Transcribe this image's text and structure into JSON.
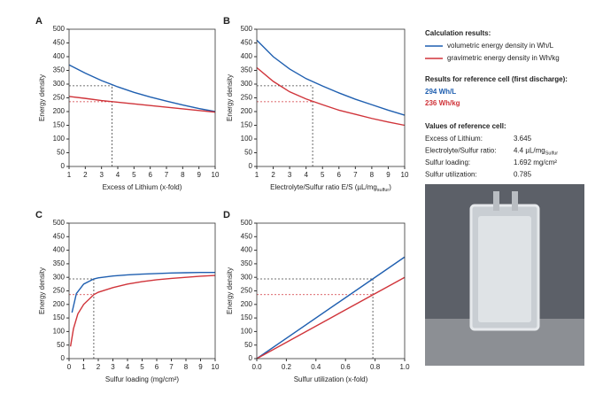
{
  "chart_data": [
    {
      "type": "line",
      "label": "A",
      "y_label": "Energy density",
      "x_label": {
        "text": "Excess of Lithium (x-fold)"
      },
      "xlim": [
        1,
        10
      ],
      "xticks": [
        1,
        2,
        3,
        4,
        5,
        6,
        7,
        8,
        9,
        10
      ],
      "ylim": [
        0,
        500
      ],
      "yticks": [
        0,
        50,
        100,
        150,
        200,
        250,
        300,
        350,
        400,
        450,
        500
      ],
      "reference_x": 3.645,
      "reference_y": [
        294,
        236
      ],
      "series": [
        {
          "name": "volumetric energy density in Wh/L",
          "color": "#1f5fb0",
          "x": [
            1,
            2,
            3,
            4,
            5,
            6,
            7,
            8,
            9,
            10
          ],
          "values": [
            370,
            340,
            313,
            290,
            270,
            253,
            238,
            224,
            211,
            200
          ]
        },
        {
          "name": "gravimetric energy density in Wh/kg",
          "color": "#d0343a",
          "x": [
            1,
            2,
            3,
            4,
            5,
            6,
            7,
            8,
            9,
            10
          ],
          "values": [
            255,
            248,
            240,
            234,
            228,
            222,
            216,
            210,
            204,
            198
          ]
        }
      ]
    },
    {
      "type": "line",
      "label": "B",
      "y_label": "Energy density",
      "x_label": {
        "text": "Electrolyte/Sulfur ratio E/S (µL/mg",
        "sub": "sulfur",
        "tail": ")"
      },
      "xlim": [
        1,
        10
      ],
      "xticks": [
        1,
        2,
        3,
        4,
        5,
        6,
        7,
        8,
        9,
        10
      ],
      "ylim": [
        0,
        500
      ],
      "yticks": [
        0,
        50,
        100,
        150,
        200,
        250,
        300,
        350,
        400,
        450,
        500
      ],
      "reference_x": 4.4,
      "reference_y": [
        294,
        236
      ],
      "series": [
        {
          "name": "volumetric energy density in Wh/L",
          "color": "#1f5fb0",
          "x": [
            1,
            2,
            3,
            4,
            5,
            6,
            7,
            8,
            9,
            10
          ],
          "values": [
            460,
            400,
            355,
            320,
            293,
            268,
            245,
            225,
            205,
            187
          ]
        },
        {
          "name": "gravimetric energy density in Wh/kg",
          "color": "#d0343a",
          "x": [
            1,
            2,
            3,
            4,
            5,
            6,
            7,
            8,
            9,
            10
          ],
          "values": [
            360,
            310,
            272,
            246,
            225,
            205,
            190,
            175,
            162,
            150
          ]
        }
      ]
    },
    {
      "type": "line",
      "label": "C",
      "y_label": "Energy density",
      "x_label": {
        "text": "Sulfur loading (mg/cm²)"
      },
      "xlim": [
        0,
        10
      ],
      "xticks": [
        0,
        1,
        2,
        3,
        4,
        5,
        6,
        7,
        8,
        9,
        10
      ],
      "ylim": [
        0,
        500
      ],
      "yticks": [
        0,
        50,
        100,
        150,
        200,
        250,
        300,
        350,
        400,
        450,
        500
      ],
      "reference_x": 1.692,
      "reference_y": [
        294,
        236
      ],
      "series": [
        {
          "name": "volumetric energy density in Wh/L",
          "color": "#1f5fb0",
          "x": [
            0.2,
            0.5,
            1,
            1.692,
            2,
            3,
            4,
            5,
            6,
            7,
            8,
            9,
            10
          ],
          "values": [
            170,
            240,
            275,
            294,
            298,
            305,
            309,
            312,
            314,
            316,
            317,
            318,
            318
          ]
        },
        {
          "name": "gravimetric energy density in Wh/kg",
          "color": "#d0343a",
          "x": [
            0.1,
            0.3,
            0.6,
            1,
            1.692,
            2,
            3,
            4,
            5,
            6,
            7,
            8,
            9,
            10
          ],
          "values": [
            45,
            110,
            165,
            200,
            236,
            245,
            262,
            275,
            284,
            291,
            296,
            300,
            304,
            307
          ]
        }
      ]
    },
    {
      "type": "line",
      "label": "D",
      "y_label": "Energy density",
      "x_label": {
        "text": "Sulfur utilization (x-fold)"
      },
      "xlim": [
        0,
        1
      ],
      "xticks": [
        {
          "value": 0,
          "label": "0.0"
        },
        0.2,
        0.4,
        0.6,
        0.8,
        {
          "value": 1,
          "label": "1.0"
        }
      ],
      "ylim": [
        0,
        500
      ],
      "yticks": [
        0,
        50,
        100,
        150,
        200,
        250,
        300,
        350,
        400,
        450,
        500
      ],
      "reference_x": 0.785,
      "reference_y": [
        294,
        236
      ],
      "series": [
        {
          "name": "volumetric energy density in Wh/L",
          "color": "#1f5fb0",
          "x": [
            0,
            1
          ],
          "values": [
            0,
            375
          ]
        },
        {
          "name": "gravimetric energy density in Wh/kg",
          "color": "#d0343a",
          "x": [
            0,
            1
          ],
          "values": [
            0,
            300
          ]
        }
      ]
    }
  ],
  "side_panel": {
    "heading": "Calculation results:",
    "results_heading": "Results for reference cell (first discharge):",
    "result_volumetric": "294 Wh/L",
    "result_gravimetric": "236 Wh/kg",
    "values_heading": "Values of reference cell:",
    "rows": [
      {
        "label": "Excess of Lithium:",
        "value": "3.645"
      },
      {
        "label": "Electrolyte/Sulfur ratio:",
        "value": "4.4 µL/mg",
        "sub": "Sulfur"
      },
      {
        "label": "Sulfur loading:",
        "value": "1.692 mg/cm²"
      },
      {
        "label": "Sulfur utilization:",
        "value": "0.785"
      }
    ]
  }
}
